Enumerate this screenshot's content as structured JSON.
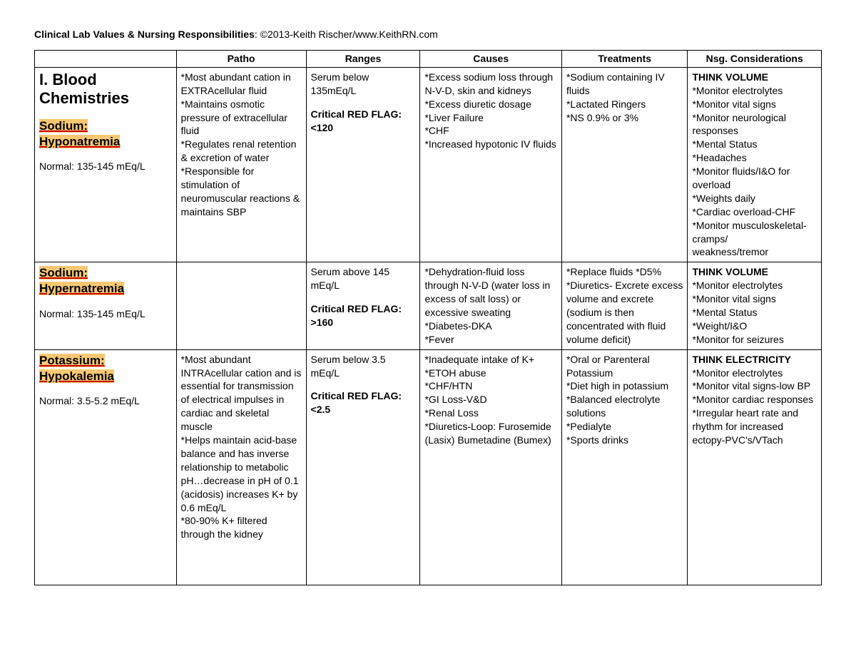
{
  "header": {
    "title_bold": "Clinical Lab Values & Nursing Responsibilities",
    "title_rest": ": ©2013-Keith Rischer/www.KeithRN.com"
  },
  "columns": [
    "",
    "Patho",
    "Ranges",
    "Causes",
    "Treatments",
    "Nsg. Considerations"
  ],
  "section_title": "I. Blood Chemistries",
  "rows": [
    {
      "label_hl": "Sodium: Hyponatremia",
      "show_section": true,
      "normal": "Normal: 135-145 mEq/L",
      "patho": "*Most abundant cation in EXTRAcellular fluid\n*Maintains osmotic pressure of extracellular fluid\n*Regulates renal retention & excretion of water\n*Responsible for stimulation of neuromuscular reactions & maintains SBP",
      "range_a": "Serum below 135mEq/L",
      "range_b_label": "Critical RED FLAG:",
      "range_b_val": "<120",
      "causes": "*Excess sodium loss through N-V-D, skin and kidneys\n*Excess diuretic dosage\n*Liver Failure\n*CHF\n*Increased hypotonic IV fluids",
      "treatments": "*Sodium containing IV fluids\n*Lactated Ringers\n*NS 0.9% or 3%",
      "nsg_bold": "THINK VOLUME",
      "nsg": "*Monitor electrolytes\n*Monitor vital signs\n*Monitor neurological responses\n*Mental Status\n*Headaches\n*Monitor fluids/I&O for overload\n*Weights daily\n*Cardiac overload-CHF\n*Monitor musculoskeletal-cramps/\nweakness/tremor"
    },
    {
      "label_hl": "Sodium: Hypernatremia",
      "show_section": false,
      "normal": "Normal: 135-145 mEq/L",
      "patho": "",
      "range_a": "Serum above 145 mEq/L",
      "range_b_label": "Critical RED FLAG:",
      "range_b_val": ">160",
      "causes": "*Dehydration-fluid loss through N-V-D (water loss in excess of salt loss) or excessive sweating\n*Diabetes-DKA\n*Fever",
      "treatments": "*Replace fluids *D5%\n*Diuretics- Excrete excess volume and excrete\n(sodium is then concentrated with fluid volume deficit)",
      "nsg_bold": "THINK VOLUME",
      "nsg": "*Monitor electrolytes\n*Monitor vital signs\n*Mental Status\n*Weight/I&O\n*Monitor for seizures"
    },
    {
      "label_hl": "Potassium: Hypokalemia",
      "show_section": false,
      "normal": "Normal: 3.5-5.2 mEq/L",
      "patho": "*Most abundant INTRAcellular cation and is essential for transmission of electrical impulses in cardiac and skeletal muscle\n*Helps maintain acid-base balance and has inverse relationship to metabolic pH…decrease in pH of 0.1 (acidosis) increases K+ by 0.6 mEq/L\n*80-90% K+ filtered through the kidney\n\n\n\n",
      "range_a": "Serum below 3.5 mEq/L",
      "range_b_label": "Critical RED FLAG:",
      "range_b_val": "<2.5",
      "causes": "*Inadequate intake of K+\n*ETOH abuse\n*CHF/HTN\n*GI Loss-V&D\n*Renal Loss\n*Diuretics-Loop: Furosemide (Lasix) Bumetadine (Bumex)",
      "treatments": "*Oral or Parenteral Potassium\n*Diet high in potassium\n*Balanced electrolyte solutions\n*Pedialyte\n*Sports drinks",
      "nsg_bold": "THINK ELECTRICITY",
      "nsg": "*Monitor electrolytes\n*Monitor vital signs-low BP\n*Monitor cardiac responses\n*Irregular heart rate and rhythm for increased ectopy-PVC's/VTach"
    }
  ]
}
